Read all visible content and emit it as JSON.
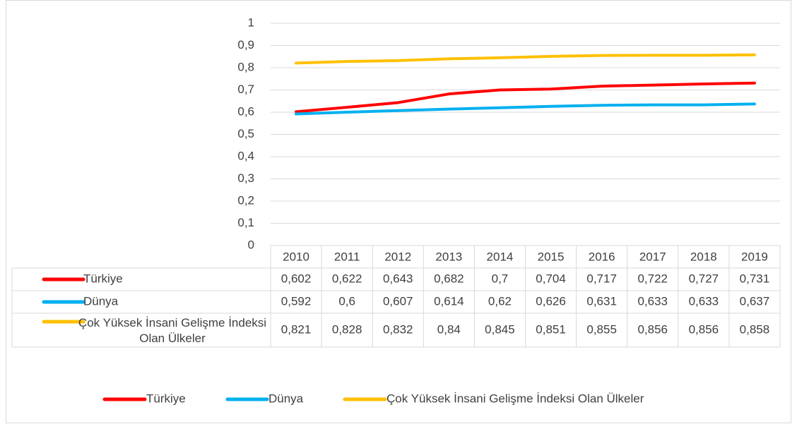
{
  "chart_data": {
    "type": "line",
    "categories": [
      "2010",
      "2011",
      "2012",
      "2013",
      "2014",
      "2015",
      "2016",
      "2017",
      "2018",
      "2019"
    ],
    "series": [
      {
        "name": "Türkiye",
        "color": "#ff0000",
        "values": [
          0.602,
          0.622,
          0.643,
          0.682,
          0.7,
          0.704,
          0.717,
          0.722,
          0.727,
          0.731
        ],
        "value_labels": [
          "0,602",
          "0,622",
          "0,643",
          "0,682",
          "0,7",
          "0,704",
          "0,717",
          "0,722",
          "0,727",
          "0,731"
        ]
      },
      {
        "name": "Dünya",
        "color": "#00b0f0",
        "values": [
          0.592,
          0.6,
          0.607,
          0.614,
          0.62,
          0.626,
          0.631,
          0.633,
          0.633,
          0.637
        ],
        "value_labels": [
          "0,592",
          "0,6",
          "0,607",
          "0,614",
          "0,62",
          "0,626",
          "0,631",
          "0,633",
          "0,633",
          "0,637"
        ]
      },
      {
        "name": "Çok Yüksek İnsani Gelişme İndeksi Olan Ülkeler",
        "color": "#ffc000",
        "values": [
          0.821,
          0.828,
          0.832,
          0.84,
          0.845,
          0.851,
          0.855,
          0.856,
          0.856,
          0.858
        ],
        "value_labels": [
          "0,821",
          "0,828",
          "0,832",
          "0,84",
          "0,845",
          "0,851",
          "0,855",
          "0,856",
          "0,856",
          "0,858"
        ]
      }
    ],
    "ylim": [
      0,
      1
    ],
    "yticks": [
      0,
      {
        "value": 0.1,
        "label": "0,1"
      },
      {
        "value": 0.2,
        "label": "0,2"
      },
      {
        "value": 0.3,
        "label": "0,3"
      },
      {
        "value": 0.4,
        "label": "0,4"
      },
      {
        "value": 0.5,
        "label": "0,5"
      },
      {
        "value": 0.6,
        "label": "0,6"
      },
      {
        "value": 0.7,
        "label": "0,7"
      },
      {
        "value": 0.8,
        "label": "0,8"
      },
      {
        "value": 0.9,
        "label": "0,9"
      },
      1
    ],
    "grid": true,
    "legend": "bottom"
  }
}
